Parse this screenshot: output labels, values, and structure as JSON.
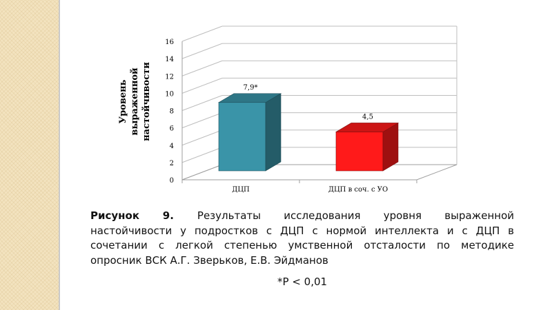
{
  "chart_data": {
    "type": "bar",
    "categories": [
      "ДЦП",
      "ДЦП в соч. с УО"
    ],
    "values": [
      7.9,
      4.5
    ],
    "data_labels": [
      "7,9*",
      "4,5"
    ],
    "colors": [
      "#3a94a8",
      "#ff1a1a"
    ],
    "y_ticks": [
      "0",
      "2",
      "4",
      "6",
      "8",
      "10",
      "12",
      "14",
      "16"
    ],
    "ylim": [
      0,
      16
    ],
    "ylabel": "Уровень выраженной настойчивости",
    "grid": true,
    "style": "3d"
  },
  "caption": {
    "lead": "Рисунок 9.",
    "text": "Результаты исследования уровня выраженной настойчивости у подростков с ДЦП с нормой интеллекта и с ДЦП в сочетании с легкой степенью умственной отсталости по методике опросник ВСК А.Г. Зверьков, Е.В. Эйдманов",
    "note": "*P < 0,01"
  }
}
